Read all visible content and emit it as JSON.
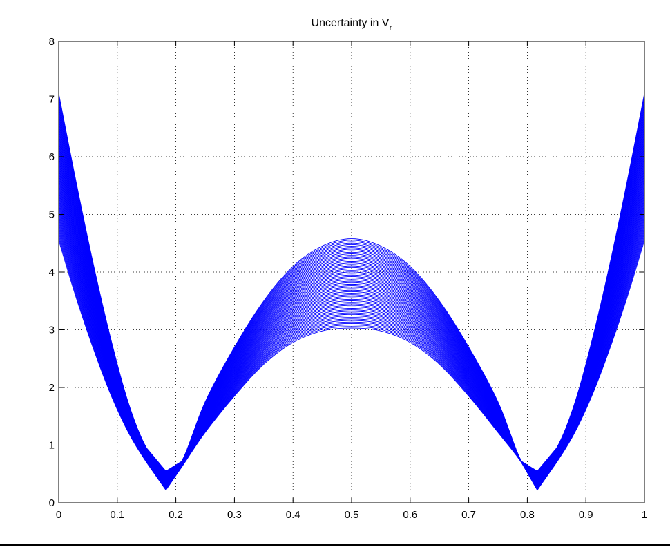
{
  "chart_data": {
    "type": "line",
    "title": "Uncertainty in V",
    "title_subscript": "r",
    "xlabel": "",
    "ylabel": "",
    "xlim": [
      0,
      1
    ],
    "ylim": [
      0,
      8
    ],
    "grid": true,
    "x_ticks": [
      "0",
      "0.1",
      "0.2",
      "0.3",
      "0.4",
      "0.5",
      "0.6",
      "0.7",
      "0.8",
      "0.9",
      "1"
    ],
    "y_ticks": [
      "0",
      "1",
      "2",
      "3",
      "4",
      "5",
      "6",
      "7",
      "8"
    ],
    "line_color": "#0000ff",
    "series_count": 60,
    "x": [
      0,
      0.03,
      0.06,
      0.09,
      0.12,
      0.15,
      0.183,
      0.21,
      0.25,
      0.3,
      0.35,
      0.4,
      0.45,
      0.5,
      0.55,
      0.6,
      0.65,
      0.7,
      0.75,
      0.79,
      0.817,
      0.85,
      0.88,
      0.91,
      0.94,
      0.97,
      1
    ],
    "envelope_low": [
      4.55,
      3.55,
      2.65,
      1.85,
      1.2,
      0.7,
      0.22,
      0.62,
      1.22,
      1.85,
      2.4,
      2.78,
      2.98,
      3.03,
      2.98,
      2.78,
      2.4,
      1.85,
      1.22,
      0.7,
      0.22,
      0.7,
      1.2,
      1.85,
      2.65,
      3.55,
      4.55
    ],
    "envelope_high": [
      7.1,
      5.55,
      4.1,
      2.8,
      1.7,
      0.95,
      0.55,
      0.72,
      1.75,
      2.7,
      3.5,
      4.1,
      4.45,
      4.58,
      4.45,
      4.1,
      3.5,
      2.7,
      1.75,
      0.72,
      0.55,
      0.95,
      1.7,
      2.8,
      4.1,
      5.55,
      7.1
    ]
  }
}
